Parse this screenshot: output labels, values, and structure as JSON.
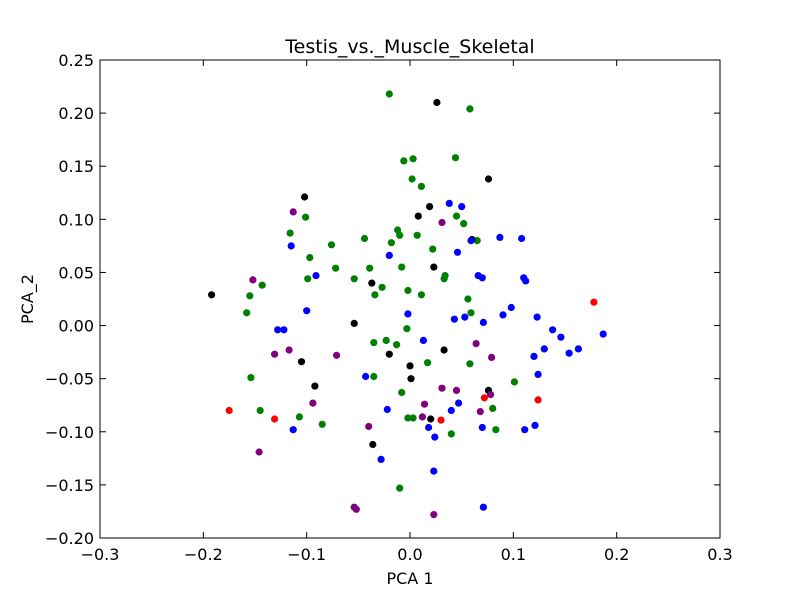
{
  "chart_data": {
    "type": "scatter",
    "title": "Testis_vs._Muscle_Skeletal",
    "xlabel": "PCA 1",
    "ylabel": "PCA_2",
    "xlim": [
      -0.3,
      0.3
    ],
    "ylim": [
      -0.2,
      0.25
    ],
    "xticks": [
      "−0.3",
      "−0.2",
      "−0.1",
      "0.0",
      "0.1",
      "0.2",
      "0.3"
    ],
    "yticks": [
      "−0.20",
      "−0.15",
      "−0.10",
      "−0.05",
      "0.00",
      "0.05",
      "0.10",
      "0.15",
      "0.20",
      "0.25"
    ],
    "xtick_values": [
      -0.3,
      -0.2,
      -0.1,
      0.0,
      0.1,
      0.2,
      0.3
    ],
    "ytick_values": [
      -0.2,
      -0.15,
      -0.1,
      -0.05,
      0.0,
      0.05,
      0.1,
      0.15,
      0.2,
      0.25
    ],
    "grid": false,
    "series": [
      {
        "color": "#008000",
        "points": [
          [
            -0.02,
            0.218
          ],
          [
            0.058,
            0.204
          ],
          [
            0.044,
            0.158
          ],
          [
            -0.006,
            0.155
          ],
          [
            0.003,
            0.157
          ],
          [
            0.002,
            0.138
          ],
          [
            0.011,
            0.131
          ],
          [
            0.045,
            0.103
          ],
          [
            -0.101,
            0.102
          ],
          [
            -0.116,
            0.087
          ],
          [
            -0.097,
            0.064
          ],
          [
            -0.076,
            0.076
          ],
          [
            -0.044,
            0.082
          ],
          [
            -0.018,
            0.078
          ],
          [
            -0.012,
            0.09
          ],
          [
            -0.01,
            0.085
          ],
          [
            0.007,
            0.085
          ],
          [
            0.022,
            0.072
          ],
          [
            0.052,
            0.096
          ],
          [
            0.065,
            0.08
          ],
          [
            -0.143,
            0.038
          ],
          [
            -0.155,
            0.028
          ],
          [
            -0.158,
            0.012
          ],
          [
            -0.099,
            0.044
          ],
          [
            -0.072,
            0.054
          ],
          [
            -0.054,
            0.044
          ],
          [
            -0.039,
            0.054
          ],
          [
            -0.034,
            0.029
          ],
          [
            -0.027,
            0.036
          ],
          [
            -0.008,
            0.055
          ],
          [
            -0.002,
            0.033
          ],
          [
            0.011,
            0.029
          ],
          [
            0.033,
            0.044
          ],
          [
            0.034,
            0.047
          ],
          [
            0.056,
            0.025
          ],
          [
            0.059,
            0.012
          ],
          [
            -0.035,
            -0.016
          ],
          [
            -0.023,
            -0.014
          ],
          [
            -0.013,
            -0.018
          ],
          [
            -0.003,
            -0.003
          ],
          [
            0.017,
            -0.035
          ],
          [
            0.058,
            -0.036
          ],
          [
            -0.154,
            -0.049
          ],
          [
            -0.145,
            -0.08
          ],
          [
            -0.107,
            -0.086
          ],
          [
            -0.085,
            -0.093
          ],
          [
            -0.035,
            -0.048
          ],
          [
            -0.008,
            -0.063
          ],
          [
            -0.002,
            -0.087
          ],
          [
            0.003,
            -0.087
          ],
          [
            0.04,
            -0.102
          ],
          [
            0.08,
            -0.078
          ],
          [
            0.083,
            -0.098
          ],
          [
            0.101,
            -0.053
          ],
          [
            -0.01,
            -0.153
          ]
        ]
      },
      {
        "color": "#000000",
        "points": [
          [
            0.026,
            0.21
          ],
          [
            0.076,
            0.138
          ],
          [
            -0.102,
            0.121
          ],
          [
            0.019,
            0.112
          ],
          [
            0.008,
            0.103
          ],
          [
            0.06,
            0.081
          ],
          [
            0.023,
            0.055
          ],
          [
            -0.192,
            0.029
          ],
          [
            -0.037,
            0.04
          ],
          [
            -0.054,
            0.002
          ],
          [
            -0.105,
            -0.034
          ],
          [
            -0.092,
            -0.057
          ],
          [
            -0.02,
            -0.027
          ],
          [
            0.033,
            -0.023
          ],
          [
            0.0,
            -0.038
          ],
          [
            0.001,
            -0.05
          ],
          [
            0.076,
            -0.061
          ],
          [
            -0.036,
            -0.112
          ],
          [
            0.02,
            -0.088
          ]
        ]
      },
      {
        "color": "#0000ff",
        "points": [
          [
            0.038,
            0.115
          ],
          [
            0.05,
            0.112
          ],
          [
            -0.115,
            0.075
          ],
          [
            -0.091,
            0.047
          ],
          [
            -0.02,
            0.066
          ],
          [
            0.046,
            0.069
          ],
          [
            0.059,
            0.08
          ],
          [
            0.087,
            0.083
          ],
          [
            0.108,
            0.082
          ],
          [
            0.066,
            0.047
          ],
          [
            0.07,
            0.045
          ],
          [
            0.11,
            0.045
          ],
          [
            0.112,
            0.042
          ],
          [
            -0.1,
            0.014
          ],
          [
            -0.128,
            -0.004
          ],
          [
            -0.122,
            -0.004
          ],
          [
            -0.002,
            0.011
          ],
          [
            0.013,
            -0.014
          ],
          [
            0.043,
            0.006
          ],
          [
            0.053,
            0.008
          ],
          [
            0.071,
            0.003
          ],
          [
            0.09,
            0.01
          ],
          [
            0.098,
            0.017
          ],
          [
            0.123,
            0.008
          ],
          [
            0.138,
            -0.004
          ],
          [
            0.146,
            -0.011
          ],
          [
            0.154,
            -0.026
          ],
          [
            0.163,
            -0.022
          ],
          [
            0.187,
            -0.008
          ],
          [
            0.13,
            -0.022
          ],
          [
            0.12,
            -0.029
          ],
          [
            0.124,
            -0.046
          ],
          [
            -0.043,
            -0.048
          ],
          [
            -0.022,
            -0.079
          ],
          [
            0.047,
            -0.073
          ],
          [
            0.04,
            -0.08
          ],
          [
            -0.113,
            -0.098
          ],
          [
            0.018,
            -0.096
          ],
          [
            0.024,
            -0.105
          ],
          [
            0.07,
            -0.096
          ],
          [
            0.111,
            -0.098
          ],
          [
            0.121,
            -0.094
          ],
          [
            -0.028,
            -0.126
          ],
          [
            0.023,
            -0.137
          ],
          [
            0.071,
            -0.171
          ]
        ]
      },
      {
        "color": "#800080",
        "points": [
          [
            -0.113,
            0.107
          ],
          [
            0.031,
            0.097
          ],
          [
            -0.152,
            0.043
          ],
          [
            -0.131,
            -0.027
          ],
          [
            -0.117,
            -0.023
          ],
          [
            -0.071,
            -0.028
          ],
          [
            0.064,
            -0.017
          ],
          [
            0.079,
            -0.03
          ],
          [
            0.031,
            -0.059
          ],
          [
            0.045,
            -0.061
          ],
          [
            0.078,
            -0.065
          ],
          [
            -0.094,
            -0.073
          ],
          [
            0.014,
            -0.074
          ],
          [
            0.012,
            -0.086
          ],
          [
            0.068,
            -0.081
          ],
          [
            -0.04,
            -0.095
          ],
          [
            -0.146,
            -0.119
          ],
          [
            -0.054,
            -0.171
          ],
          [
            -0.052,
            -0.173
          ],
          [
            0.023,
            -0.178
          ]
        ]
      },
      {
        "color": "#ff0000",
        "points": [
          [
            0.178,
            0.022
          ],
          [
            -0.175,
            -0.08
          ],
          [
            -0.131,
            -0.088
          ],
          [
            0.03,
            -0.089
          ],
          [
            0.072,
            -0.068
          ],
          [
            0.124,
            -0.07
          ]
        ]
      }
    ]
  }
}
